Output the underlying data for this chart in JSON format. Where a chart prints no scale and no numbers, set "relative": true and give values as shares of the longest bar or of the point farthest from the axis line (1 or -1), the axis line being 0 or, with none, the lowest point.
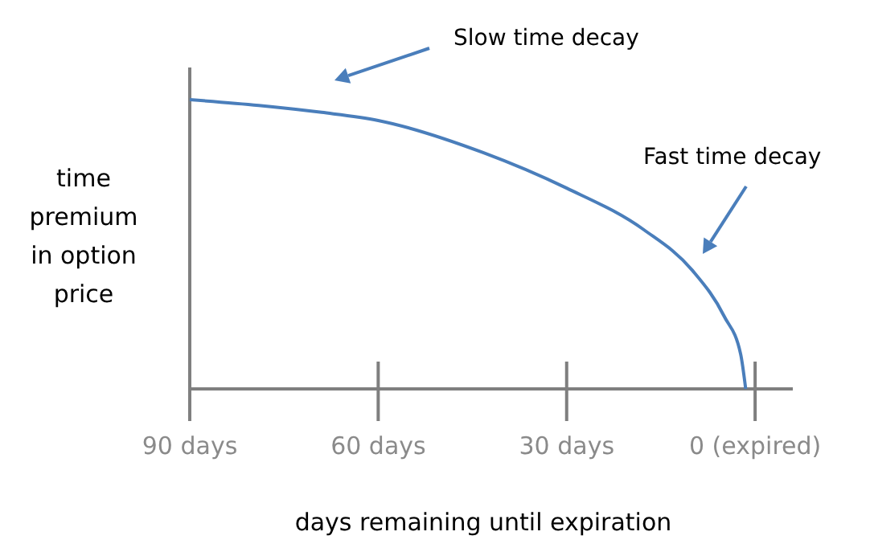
{
  "chart_data": {
    "type": "line",
    "relative": true,
    "xlabel": "days remaining until expiration",
    "ylabel": "time premium in option price",
    "x": [
      90,
      79,
      69,
      60,
      43.3,
      30,
      17.7,
      10,
      4.9,
      2.3,
      1.5
    ],
    "series": [
      {
        "color": "#4a7ebb",
        "values": [
          1,
          0.98,
          0.956,
          0.928,
          0.817,
          0.694,
          0.55,
          0.41,
          0.25,
          0.12,
          0
        ]
      }
    ],
    "xlim": [
      90,
      -6
    ],
    "xticks": [
      {
        "value": 90,
        "label": "90 days"
      },
      {
        "value": 60,
        "label": "60 days"
      },
      {
        "value": 30,
        "label": "30 days"
      },
      {
        "value": 0,
        "label": "0 (expired)"
      }
    ],
    "annotations": [
      "Slow time decay",
      "Fast time decay"
    ],
    "grid": false,
    "marker": "none",
    "line_style": "solid"
  }
}
